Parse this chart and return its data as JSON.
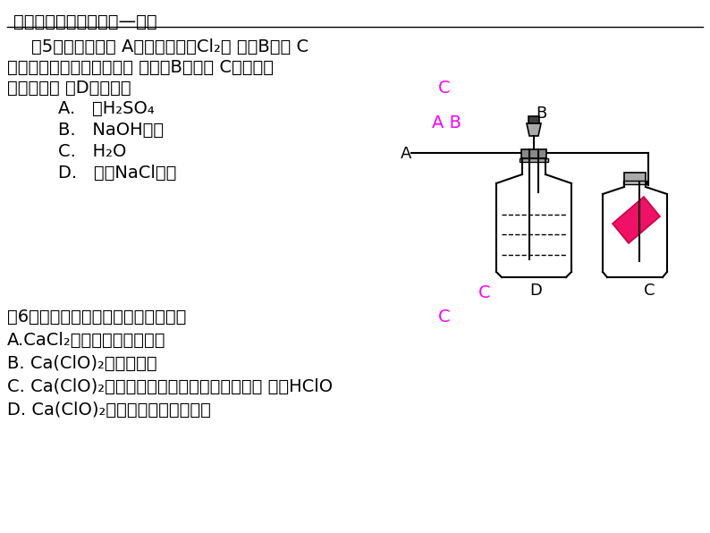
{
  "bg_color": "#ffffff",
  "title_line": "一、活泼的黄绿色气体—氯气",
  "answer_color": "#ff00ff",
  "ex5_line1": "例5：如图所示， A处通入湿润的Cl₂， 关闭B阀时 C",
  "ex5_line2": "处的红布看不到明显褪谣， 当打开B阀后， C处红布条",
  "ex5_line3": "逐渐褪色， 则D中装的是",
  "choice_A": "A.   浓H₂SO₄",
  "choice_B": "B.   NaOH溶液",
  "choice_C": "C.   H₂O",
  "choice_D": "D.   饱和NaCl溶液",
  "answer5": "C",
  "ex6_line0": "例6：漂白粉在空气中易失效的原因是",
  "ex6_line1": "A.CaCl₂易吸收空气中的水分",
  "ex6_line2": "B. Ca(ClO)₂见光易分解",
  "ex6_line3": "C. Ca(ClO)₂与空气中的水分和二氧化碳作用， 生成HClO",
  "ex6_line4": "D. Ca(ClO)₂易被空气中的氧气氧化",
  "answer6": "C"
}
